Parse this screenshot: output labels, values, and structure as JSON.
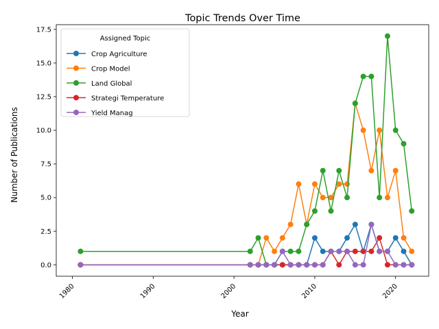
{
  "chart_data": {
    "type": "line",
    "title": "Topic Trends Over Time",
    "xlabel": "Year",
    "ylabel": "Number of Publications",
    "xlim": [
      1978.0,
      2024.1
    ],
    "ylim": [
      -0.85,
      17.85
    ],
    "xticks": [
      1980,
      1990,
      2000,
      2010,
      2020
    ],
    "yticks": [
      0.0,
      2.5,
      5.0,
      7.5,
      10.0,
      12.5,
      15.0,
      17.5
    ],
    "ytick_labels": [
      "0.0",
      "2.5",
      "5.0",
      "7.5",
      "10.0",
      "12.5",
      "15.0",
      "17.5"
    ],
    "grid": false,
    "legend": {
      "title": "Assigned Topic",
      "placement": "top-left"
    },
    "x": [
      1981,
      2002,
      2003,
      2004,
      2005,
      2006,
      2007,
      2008,
      2009,
      2010,
      2011,
      2012,
      2013,
      2014,
      2015,
      2016,
      2017,
      2018,
      2019,
      2020,
      2021,
      2022
    ],
    "series": [
      {
        "name": "Crop Agriculture",
        "color": "#1f77b4",
        "values": [
          0,
          0,
          0,
          0,
          0,
          0,
          0,
          0,
          0,
          2,
          1,
          1,
          1,
          2,
          3,
          1,
          3,
          1,
          1,
          2,
          1,
          0
        ]
      },
      {
        "name": "Crop Model",
        "color": "#ff7f0e",
        "values": [
          0,
          0,
          0,
          2,
          1,
          2,
          3,
          6,
          3,
          6,
          5,
          5,
          6,
          6,
          12,
          10,
          7,
          10,
          5,
          7,
          2,
          1
        ]
      },
      {
        "name": "Land Global",
        "color": "#2ca02c",
        "values": [
          1,
          1,
          2,
          0,
          0,
          1,
          1,
          1,
          3,
          4,
          7,
          4,
          7,
          5,
          12,
          14,
          14,
          5,
          17,
          10,
          9,
          4
        ]
      },
      {
        "name": "Strategi Temperature",
        "color": "#d62728",
        "values": [
          0,
          0,
          0,
          0,
          0,
          0,
          0,
          0,
          0,
          0,
          0,
          1,
          0,
          1,
          1,
          1,
          1,
          2,
          0,
          0,
          0,
          0
        ]
      },
      {
        "name": "Yield Manag",
        "color": "#9467bd",
        "values": [
          0,
          0,
          0,
          0,
          0,
          1,
          0,
          0,
          0,
          0,
          0,
          1,
          1,
          1,
          0,
          0,
          3,
          1,
          1,
          0,
          0,
          0
        ]
      }
    ]
  }
}
